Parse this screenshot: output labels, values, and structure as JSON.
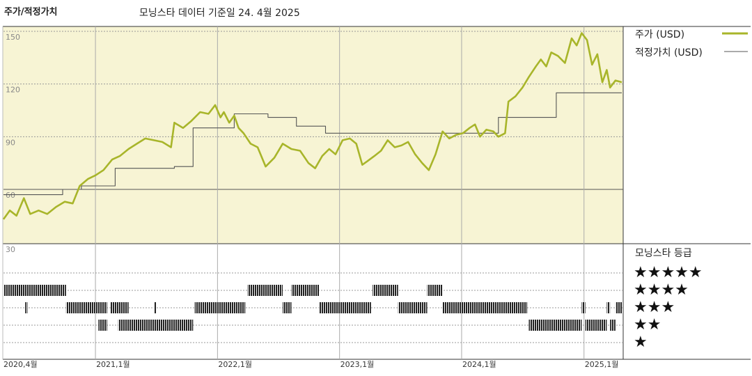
{
  "header": {
    "left_title": "주가/적정가치",
    "subtitle": "모닝스타 데이터 기준일 24. 4월 2025"
  },
  "legend": {
    "price_label": "주가 (USD)",
    "fair_value_label": "적정가치 (USD)",
    "price_color": "#a8b52a",
    "fair_value_color": "#555555"
  },
  "rating_panel": {
    "title": "모닝스타 등급",
    "stars": [
      "★★★★★",
      "★★★★",
      "★★★",
      "★★",
      "★"
    ]
  },
  "chart_data": {
    "type": "line",
    "ylim": [
      30,
      150
    ],
    "ytick_labels": [
      "150",
      "120",
      "90",
      "60",
      "30"
    ],
    "yticks": [
      150,
      120,
      90,
      60,
      30
    ],
    "x_range": [
      "2020-04-01",
      "2025-04-24"
    ],
    "xtick_labels": [
      "2020,4월",
      "2021,1월",
      "2022,1월",
      "2023,1월",
      "2024,1월",
      "2025,1월"
    ],
    "xticks": [
      "2020-04-01",
      "2021-01-01",
      "2022-01-01",
      "2023-01-01",
      "2024-01-01",
      "2025-01-01"
    ],
    "series": [
      {
        "name": "주가 (USD)",
        "points": [
          [
            "2020-04-01",
            43
          ],
          [
            "2020-04-20",
            48
          ],
          [
            "2020-05-10",
            45
          ],
          [
            "2020-06-01",
            55
          ],
          [
            "2020-06-20",
            46
          ],
          [
            "2020-07-15",
            48
          ],
          [
            "2020-08-10",
            46
          ],
          [
            "2020-09-05",
            50
          ],
          [
            "2020-10-01",
            53
          ],
          [
            "2020-10-25",
            52
          ],
          [
            "2020-11-15",
            62
          ],
          [
            "2020-12-10",
            66
          ],
          [
            "2021-01-01",
            68
          ],
          [
            "2021-01-25",
            71
          ],
          [
            "2021-02-20",
            77
          ],
          [
            "2021-03-15",
            79
          ],
          [
            "2021-04-10",
            83
          ],
          [
            "2021-05-05",
            86
          ],
          [
            "2021-05-30",
            89
          ],
          [
            "2021-06-25",
            88
          ],
          [
            "2021-07-20",
            87
          ],
          [
            "2021-08-15",
            84
          ],
          [
            "2021-08-25",
            98
          ],
          [
            "2021-09-20",
            95
          ],
          [
            "2021-10-15",
            99
          ],
          [
            "2021-11-10",
            104
          ],
          [
            "2021-12-05",
            103
          ],
          [
            "2021-12-25",
            108
          ],
          [
            "2022-01-10",
            101
          ],
          [
            "2022-01-20",
            104
          ],
          [
            "2022-02-05",
            98
          ],
          [
            "2022-02-20",
            102
          ],
          [
            "2022-03-05",
            95
          ],
          [
            "2022-03-20",
            92
          ],
          [
            "2022-04-10",
            86
          ],
          [
            "2022-05-01",
            84
          ],
          [
            "2022-05-25",
            73
          ],
          [
            "2022-06-20",
            78
          ],
          [
            "2022-07-15",
            86
          ],
          [
            "2022-08-10",
            83
          ],
          [
            "2022-09-05",
            82
          ],
          [
            "2022-09-30",
            75
          ],
          [
            "2022-10-20",
            72
          ],
          [
            "2022-11-10",
            79
          ],
          [
            "2022-12-01",
            83
          ],
          [
            "2022-12-20",
            80
          ],
          [
            "2023-01-10",
            88
          ],
          [
            "2023-02-01",
            89
          ],
          [
            "2023-02-20",
            86
          ],
          [
            "2023-03-10",
            74
          ],
          [
            "2023-03-25",
            76
          ],
          [
            "2023-04-15",
            79
          ],
          [
            "2023-05-05",
            82
          ],
          [
            "2023-05-25",
            88
          ],
          [
            "2023-06-15",
            84
          ],
          [
            "2023-07-05",
            85
          ],
          [
            "2023-07-25",
            87
          ],
          [
            "2023-08-15",
            80
          ],
          [
            "2023-09-05",
            75
          ],
          [
            "2023-09-25",
            71
          ],
          [
            "2023-10-15",
            80
          ],
          [
            "2023-11-05",
            93
          ],
          [
            "2023-11-25",
            89
          ],
          [
            "2023-12-15",
            91
          ],
          [
            "2024-01-05",
            92
          ],
          [
            "2024-01-25",
            95
          ],
          [
            "2024-02-10",
            97
          ],
          [
            "2024-02-25",
            90
          ],
          [
            "2024-03-15",
            94
          ],
          [
            "2024-04-05",
            93
          ],
          [
            "2024-04-20",
            90
          ],
          [
            "2024-05-10",
            92
          ],
          [
            "2024-05-20",
            110
          ],
          [
            "2024-06-10",
            113
          ],
          [
            "2024-07-01",
            118
          ],
          [
            "2024-07-20",
            124
          ],
          [
            "2024-08-10",
            130
          ],
          [
            "2024-08-25",
            134
          ],
          [
            "2024-09-10",
            130
          ],
          [
            "2024-09-25",
            138
          ],
          [
            "2024-10-15",
            136
          ],
          [
            "2024-11-05",
            132
          ],
          [
            "2024-11-25",
            146
          ],
          [
            "2024-12-10",
            142
          ],
          [
            "2024-12-25",
            149
          ],
          [
            "2025-01-10",
            145
          ],
          [
            "2025-01-25",
            131
          ],
          [
            "2025-02-10",
            137
          ],
          [
            "2025-02-25",
            121
          ],
          [
            "2025-03-10",
            128
          ],
          [
            "2025-03-20",
            118
          ],
          [
            "2025-04-05",
            122
          ],
          [
            "2025-04-24",
            121
          ]
        ]
      },
      {
        "name": "적정가치 (USD)",
        "points": [
          [
            "2020-04-01",
            57
          ],
          [
            "2020-09-25",
            57
          ],
          [
            "2020-09-25",
            60
          ],
          [
            "2020-11-20",
            60
          ],
          [
            "2020-11-20",
            62
          ],
          [
            "2021-03-01",
            62
          ],
          [
            "2021-03-01",
            72
          ],
          [
            "2021-08-25",
            72
          ],
          [
            "2021-08-25",
            73
          ],
          [
            "2021-10-20",
            73
          ],
          [
            "2021-10-20",
            95
          ],
          [
            "2022-02-20",
            95
          ],
          [
            "2022-02-20",
            103
          ],
          [
            "2022-06-01",
            103
          ],
          [
            "2022-06-01",
            101
          ],
          [
            "2022-08-25",
            101
          ],
          [
            "2022-08-25",
            96
          ],
          [
            "2022-11-20",
            96
          ],
          [
            "2022-11-20",
            92
          ],
          [
            "2024-04-20",
            92
          ],
          [
            "2024-04-20",
            101
          ],
          [
            "2024-10-10",
            101
          ],
          [
            "2024-10-10",
            115
          ],
          [
            "2025-04-24",
            115
          ]
        ]
      }
    ],
    "star_rating": {
      "levels": [
        5,
        4,
        3,
        2
      ],
      "periods": [
        [
          "2020-04-01",
          "2020-06-15",
          5
        ],
        [
          "2020-06-15",
          "2020-10-05",
          5
        ],
        [
          "2020-06-05",
          "2020-06-12",
          3
        ],
        [
          "2020-10-05",
          "2021-02-05",
          3
        ],
        [
          "2021-02-15",
          "2021-04-10",
          3
        ],
        [
          "2021-06-25",
          "2021-07-01",
          3
        ],
        [
          "2021-01-10",
          "2021-02-05",
          2
        ],
        [
          "2021-03-10",
          "2021-10-20",
          2
        ],
        [
          "2021-10-25",
          "2022-03-25",
          3
        ],
        [
          "2022-04-01",
          "2022-07-15",
          5
        ],
        [
          "2022-08-10",
          "2022-11-01",
          5
        ],
        [
          "2022-07-15",
          "2022-08-10",
          3
        ],
        [
          "2022-11-01",
          "2023-04-05",
          3
        ],
        [
          "2023-04-10",
          "2023-06-25",
          5
        ],
        [
          "2023-06-25",
          "2023-09-20",
          3
        ],
        [
          "2023-09-20",
          "2023-11-05",
          5
        ],
        [
          "2023-11-05",
          "2024-07-15",
          3
        ],
        [
          "2024-07-20",
          "2024-12-25",
          2
        ],
        [
          "2024-12-25",
          "2025-01-05",
          3
        ],
        [
          "2025-01-05",
          "2025-03-10",
          2
        ],
        [
          "2025-03-10",
          "2025-03-20",
          3
        ],
        [
          "2025-03-20",
          "2025-04-05",
          2
        ],
        [
          "2025-04-05",
          "2025-04-24",
          3
        ]
      ]
    }
  }
}
